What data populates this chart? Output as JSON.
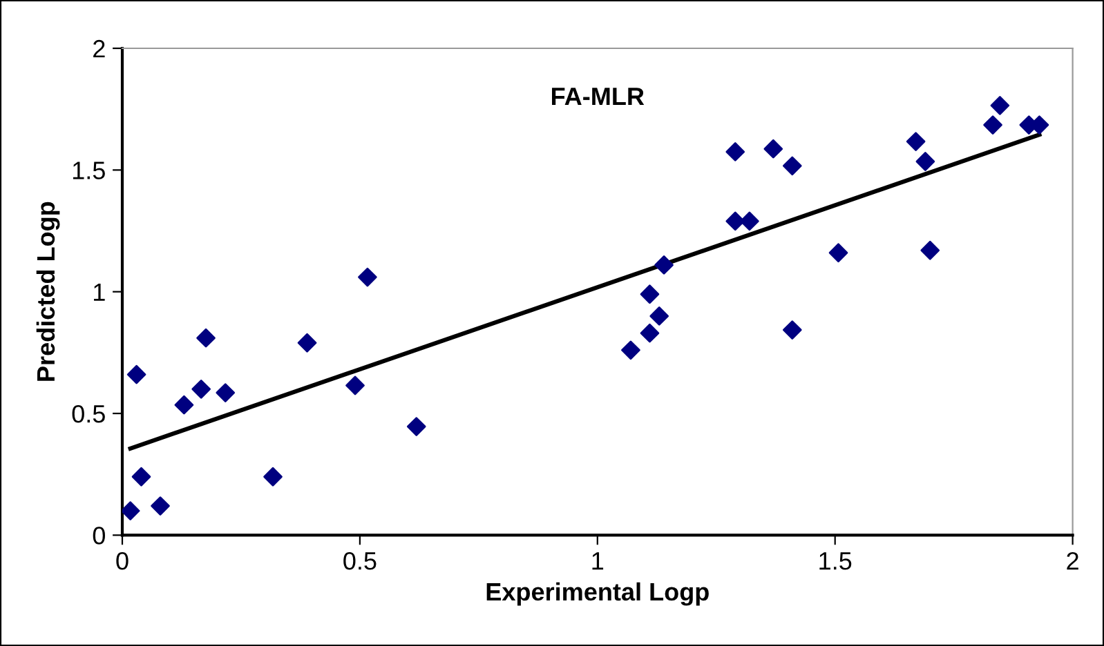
{
  "chart_data": {
    "type": "scatter",
    "title": "FA-MLR",
    "xlabel": "Experimental Logp",
    "ylabel": "Predicted Logp",
    "xlim": [
      0,
      2
    ],
    "ylim": [
      0,
      2
    ],
    "xticks": [
      0,
      0.5,
      1,
      1.5,
      2
    ],
    "yticks": [
      0,
      0.5,
      1,
      1.5,
      2
    ],
    "grid": false,
    "legend": false,
    "marker": "diamond",
    "series": [
      {
        "color": "#000080",
        "x": [
          0.017,
          0.03,
          0.04,
          0.08,
          0.13,
          0.166,
          0.176,
          0.217,
          0.317,
          0.389,
          0.49,
          0.516,
          0.619,
          1.07,
          1.11,
          1.11,
          1.13,
          1.14,
          1.29,
          1.29,
          1.32,
          1.37,
          1.41,
          1.41,
          1.507,
          1.67,
          1.69,
          1.7,
          1.832,
          1.847,
          1.908,
          1.93
        ],
        "values": [
          0.1,
          0.66,
          0.24,
          0.12,
          0.535,
          0.6,
          0.81,
          0.585,
          0.24,
          0.79,
          0.615,
          1.06,
          0.446,
          0.76,
          0.83,
          0.99,
          0.9,
          1.11,
          1.575,
          1.29,
          1.29,
          1.587,
          1.517,
          0.843,
          1.16,
          1.617,
          1.535,
          1.17,
          1.685,
          1.765,
          1.685,
          1.685
        ]
      },
      {
        "type": "line",
        "color": "#000000",
        "marker": "none",
        "line_style": "solid",
        "x": [
          0.017,
          1.93
        ],
        "values": [
          0.356,
          1.645
        ]
      }
    ]
  }
}
